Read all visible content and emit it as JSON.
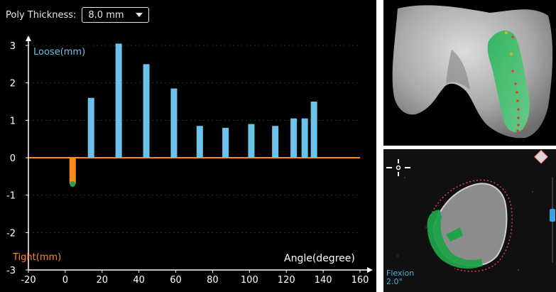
{
  "toolbar": {
    "poly_thickness_label": "Poly Thickness:",
    "poly_thickness_value": "8.0 mm"
  },
  "legend": {
    "loose_label": "Loose(mm)",
    "tight_label": "Tight(mm)"
  },
  "flexion": {
    "label": "Flexion",
    "value": "2.0°"
  },
  "colors": {
    "loose": "#6bc3e9",
    "tight": "#ff8a1a",
    "point": "#2e9e4a",
    "implant": "#1ea24a",
    "axis": "#ffffff"
  },
  "chart_data": {
    "type": "bar",
    "title": "",
    "xlabel": "Angle(degree)",
    "ylabel": "",
    "xlim": [
      -20,
      160
    ],
    "ylim": [
      -3,
      3
    ],
    "x_ticks": [
      -20,
      0,
      20,
      40,
      60,
      80,
      100,
      120,
      140,
      160
    ],
    "y_ticks": [
      3,
      2,
      1,
      0,
      -1,
      -2,
      -3
    ],
    "series": [
      {
        "name": "Loose(mm)",
        "x": [
          14,
          29,
          44,
          59,
          73,
          87,
          101,
          114,
          124,
          130,
          135
        ],
        "values": [
          1.6,
          3.05,
          2.5,
          1.85,
          0.85,
          0.8,
          0.9,
          0.85,
          1.05,
          1.05,
          1.5
        ]
      },
      {
        "name": "Tight(mm)",
        "x": [
          4
        ],
        "values": [
          -0.7
        ]
      }
    ]
  }
}
